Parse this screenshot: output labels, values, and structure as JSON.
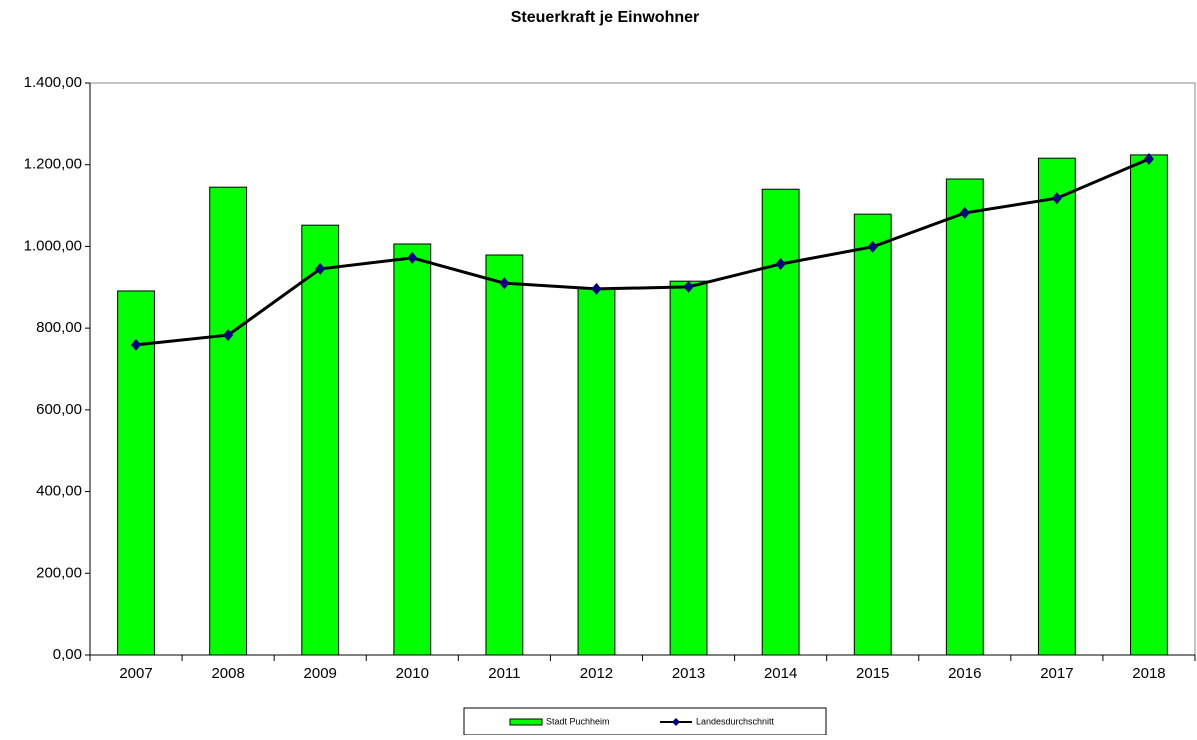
{
  "chart_data": {
    "type": "bar",
    "title": "Steuerkraft je Einwohner",
    "categories": [
      "2007",
      "2008",
      "2009",
      "2010",
      "2011",
      "2012",
      "2013",
      "2014",
      "2015",
      "2016",
      "2017",
      "2018"
    ],
    "series": [
      {
        "name": "Stadt Puchheim",
        "type": "bar",
        "color": "#00ff00",
        "values": [
          891,
          1145,
          1052,
          1006,
          979,
          898,
          915,
          1140,
          1079,
          1165,
          1216,
          1224
        ]
      },
      {
        "name": "Landesdurchschnitt",
        "type": "line",
        "color": "#000000",
        "marker_color": "#000080",
        "values": [
          759,
          783,
          945,
          972,
          910,
          896,
          901,
          957,
          999,
          1082,
          1118,
          1214
        ]
      }
    ],
    "ylim": [
      0,
      1400
    ],
    "yticks": [
      {
        "value": 0,
        "label": "0,00"
      },
      {
        "value": 200,
        "label": "200,00"
      },
      {
        "value": 400,
        "label": "400,00"
      },
      {
        "value": 600,
        "label": "600,00"
      },
      {
        "value": 800,
        "label": "800,00"
      },
      {
        "value": 1000,
        "label": "1.000,00"
      },
      {
        "value": 1200,
        "label": "1.200,00"
      },
      {
        "value": 1400,
        "label": "1.400,00"
      }
    ],
    "grid": false,
    "legend": "bottom"
  }
}
